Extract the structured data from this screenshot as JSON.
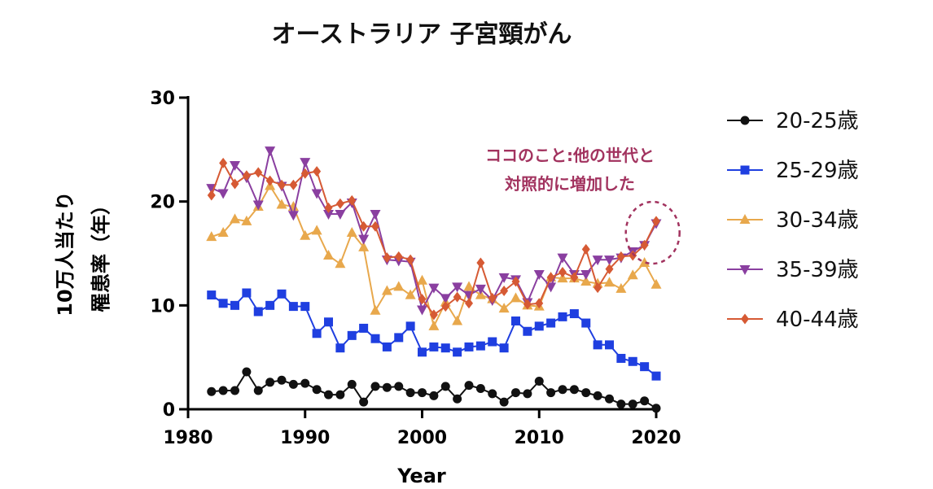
{
  "chart_data": {
    "type": "line",
    "title": "オーストラリア 子宮頸がん",
    "xlabel": "Year",
    "ylabel": [
      "10万人当たり",
      "罹患率（年）"
    ],
    "xlim": [
      1980,
      2020
    ],
    "ylim": [
      0,
      30
    ],
    "xticks": [
      "1980",
      "1990",
      "2000",
      "2010",
      "2020"
    ],
    "yticks": [
      "0",
      "10",
      "20",
      "30"
    ],
    "grid": false,
    "legend_position": "right",
    "x": [
      1982,
      1983,
      1984,
      1985,
      1986,
      1987,
      1988,
      1989,
      1990,
      1991,
      1992,
      1993,
      1994,
      1995,
      1996,
      1997,
      1998,
      1999,
      2000,
      2001,
      2002,
      2003,
      2004,
      2005,
      2006,
      2007,
      2008,
      2009,
      2010,
      2011,
      2012,
      2013,
      2014,
      2015,
      2016,
      2017,
      2018,
      2019,
      2020
    ],
    "series": [
      {
        "name": "20-25歳",
        "color": "#111111",
        "marker": "circle",
        "values": [
          1.7,
          1.8,
          1.8,
          3.6,
          1.8,
          2.6,
          2.8,
          2.4,
          2.5,
          1.9,
          1.4,
          1.4,
          2.4,
          0.7,
          2.2,
          2.1,
          2.2,
          1.6,
          1.6,
          1.3,
          2.2,
          1.0,
          2.3,
          2.0,
          1.5,
          0.7,
          1.6,
          1.5,
          2.7,
          1.6,
          1.9,
          1.9,
          1.6,
          1.3,
          1.0,
          0.5,
          0.5,
          0.8,
          0.1
        ]
      },
      {
        "name": "25-29歳",
        "color": "#1f3fe0",
        "marker": "square",
        "values": [
          11.0,
          10.2,
          10.0,
          11.2,
          9.4,
          10.0,
          11.1,
          9.9,
          9.9,
          7.3,
          8.4,
          5.9,
          7.1,
          7.8,
          6.8,
          6.0,
          6.9,
          8.0,
          5.5,
          6.0,
          5.9,
          5.5,
          6.0,
          6.1,
          6.5,
          5.9,
          8.5,
          7.5,
          8.0,
          8.3,
          8.9,
          9.2,
          8.3,
          6.2,
          6.2,
          4.9,
          4.6,
          4.1,
          3.2
        ]
      },
      {
        "name": "30-34歳",
        "color": "#e8a84c",
        "marker": "triangle-up",
        "values": [
          16.6,
          17.0,
          18.3,
          18.1,
          19.5,
          21.5,
          19.7,
          19.5,
          16.7,
          17.2,
          14.8,
          14.0,
          17.0,
          15.6,
          9.5,
          11.4,
          11.8,
          11.0,
          12.4,
          8.0,
          10.3,
          8.5,
          11.8,
          11.0,
          10.6,
          9.7,
          10.7,
          10.0,
          9.9,
          12.7,
          12.6,
          12.6,
          12.3,
          12.1,
          12.2,
          11.6,
          12.9,
          14.1,
          12.0
        ]
      },
      {
        "name": "35-39歳",
        "color": "#8a3fa0",
        "marker": "triangle-down",
        "values": [
          21.3,
          20.8,
          23.5,
          22.3,
          19.7,
          24.9,
          21.5,
          18.7,
          23.8,
          20.8,
          18.8,
          18.8,
          19.9,
          16.4,
          18.8,
          14.4,
          14.3,
          14.2,
          9.6,
          11.7,
          10.7,
          11.8,
          11.0,
          11.6,
          10.5,
          12.7,
          12.5,
          10.3,
          13.0,
          11.8,
          14.6,
          13.0,
          13.0,
          14.4,
          14.4,
          14.6,
          15.2,
          15.8,
          17.9
        ]
      },
      {
        "name": "40-44歳",
        "color": "#d65a34",
        "marker": "diamond",
        "values": [
          20.6,
          23.7,
          21.7,
          22.5,
          22.8,
          22.0,
          21.6,
          21.6,
          22.7,
          22.9,
          19.4,
          19.8,
          20.1,
          17.6,
          17.6,
          14.6,
          14.7,
          14.4,
          10.6,
          9.1,
          9.9,
          10.8,
          10.2,
          14.1,
          10.7,
          11.4,
          12.3,
          10.1,
          10.2,
          12.7,
          13.2,
          12.7,
          15.4,
          11.7,
          13.5,
          14.7,
          14.8,
          15.8,
          18.1
        ]
      }
    ],
    "annotation": {
      "lines": [
        "ココのこと:他の世代と",
        "対照的に増加した"
      ],
      "color": "#a2335f",
      "target_x": 2019.7,
      "target_y": 17
    }
  }
}
